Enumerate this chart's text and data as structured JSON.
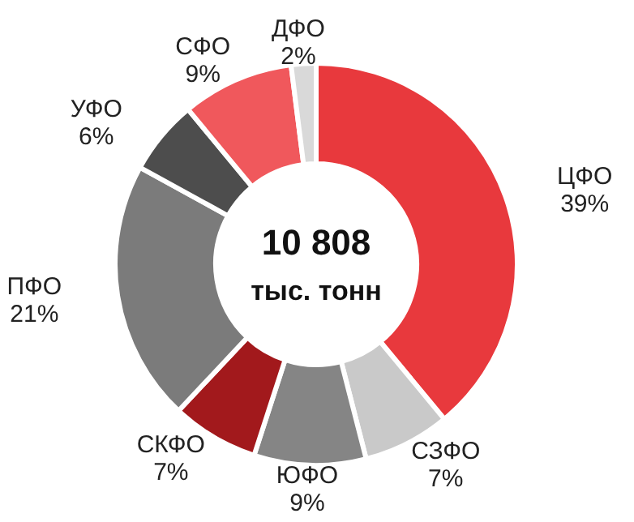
{
  "chart_data": {
    "type": "donut",
    "categories": [
      "ЦФО",
      "СЗФО",
      "ЮФО",
      "СКФО",
      "ПФО",
      "УФО",
      "СФО",
      "ДФО"
    ],
    "values": [
      39,
      7,
      9,
      7,
      21,
      6,
      9,
      2
    ],
    "value_labels": [
      "39%",
      "7%",
      "9%",
      "7%",
      "21%",
      "6%",
      "9%",
      "2%"
    ],
    "colors": [
      "#e8393d",
      "#c9c9c9",
      "#858585",
      "#a2191c",
      "#7b7b7b",
      "#4d4d4d",
      "#f0585c",
      "#d9d9d9"
    ],
    "annotations": [
      "10 808",
      "тыс. тонн"
    ]
  }
}
